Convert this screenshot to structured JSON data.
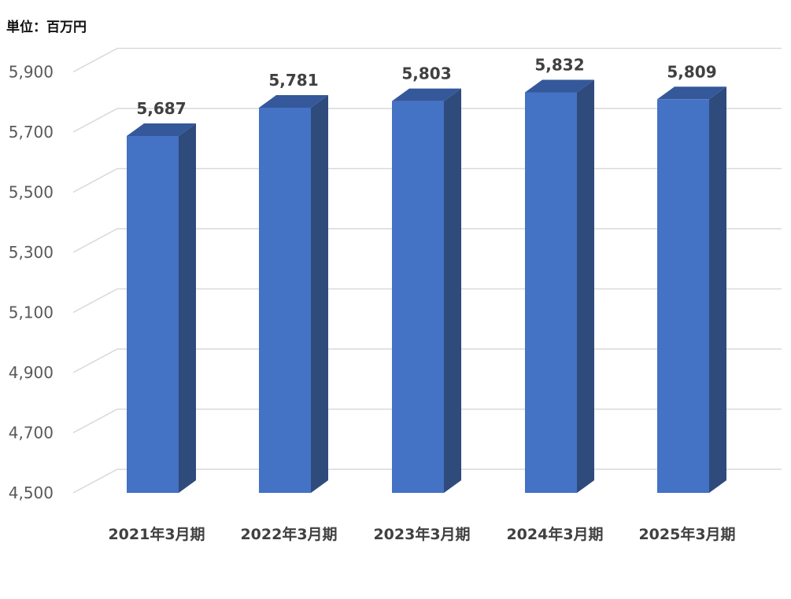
{
  "unit_label": "単位：百万円",
  "colors": {
    "bar_front": "#4472C4",
    "bar_side": "#2F4B7C",
    "bar_top": "#34589A",
    "grid": "#D9D9D9",
    "tick_text": "#595959",
    "value_text": "#404040",
    "category_text": "#404040"
  },
  "chart_data": {
    "type": "bar",
    "categories": [
      "2021年3月期",
      "2022年3月期",
      "2023年3月期",
      "2024年3月期",
      "2025年3月期"
    ],
    "values": [
      5687,
      5781,
      5803,
      5832,
      5809
    ],
    "value_labels": [
      "5,687",
      "5,781",
      "5,803",
      "5,832",
      "5,809"
    ],
    "ylim": [
      4500,
      5900
    ],
    "yticks": [
      4500,
      4700,
      4900,
      5100,
      5300,
      5500,
      5700,
      5900
    ],
    "ytick_labels": [
      "4,500",
      "4,700",
      "4,900",
      "5,100",
      "5,300",
      "5,500",
      "5,700",
      "5,900"
    ],
    "style": "3d-clustered-column",
    "grid": true,
    "legend": "none",
    "title": "",
    "xlabel": "",
    "ylabel": ""
  }
}
